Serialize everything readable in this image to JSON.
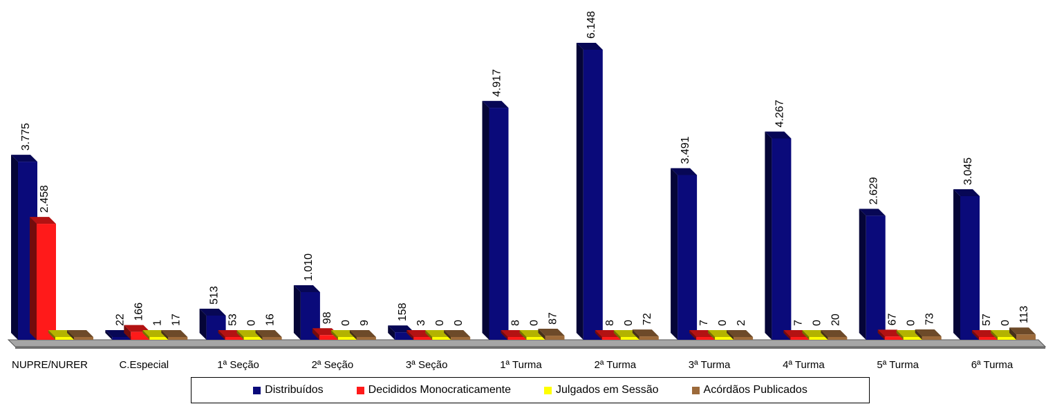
{
  "chart_data": {
    "type": "bar",
    "categories": [
      "NUPRE/NURER",
      "C.Especial",
      "1ª Seção",
      "2ª Seção",
      "3ª Seção",
      "1ª Turma",
      "2ª Turma",
      "3ª Turma",
      "4ª Turma",
      "5ª Turma",
      "6ª Turma"
    ],
    "series": [
      {
        "name": "Distribuídos",
        "color": "#0a0a7a",
        "values": [
          3775,
          22,
          513,
          1010,
          158,
          4917,
          6148,
          3491,
          4267,
          2629,
          3045
        ],
        "labels": [
          "3.775",
          "22",
          "513",
          "1.010",
          "158",
          "4.917",
          "6.148",
          "3.491",
          "4.267",
          "2.629",
          "3.045"
        ]
      },
      {
        "name": "Decididos Monocraticamente",
        "color": "#ff1a1a",
        "values": [
          2458,
          166,
          53,
          98,
          3,
          8,
          8,
          7,
          7,
          67,
          57
        ],
        "labels": [
          "2.458",
          "166",
          "53",
          "98",
          "3",
          "8",
          "8",
          "7",
          "7",
          "67",
          "57"
        ]
      },
      {
        "name": "Julgados em Sessão",
        "color": "#ffff00",
        "values": [
          0,
          1,
          0,
          0,
          0,
          0,
          0,
          0,
          0,
          0,
          0
        ],
        "labels": [
          "",
          "1",
          "0",
          "0",
          "0",
          "0",
          "0",
          "0",
          "0",
          "0",
          "0"
        ]
      },
      {
        "name": "Acórdãos Publicados",
        "color": "#9c6a3a",
        "values": [
          0,
          17,
          16,
          9,
          0,
          87,
          72,
          2,
          20,
          73,
          113
        ],
        "labels": [
          "",
          "17",
          "16",
          "9",
          "0",
          "87",
          "72",
          "2",
          "20",
          "73",
          "113"
        ]
      }
    ],
    "ylim": [
      0,
      6148
    ],
    "grid": false,
    "legend_position": "bottom"
  }
}
